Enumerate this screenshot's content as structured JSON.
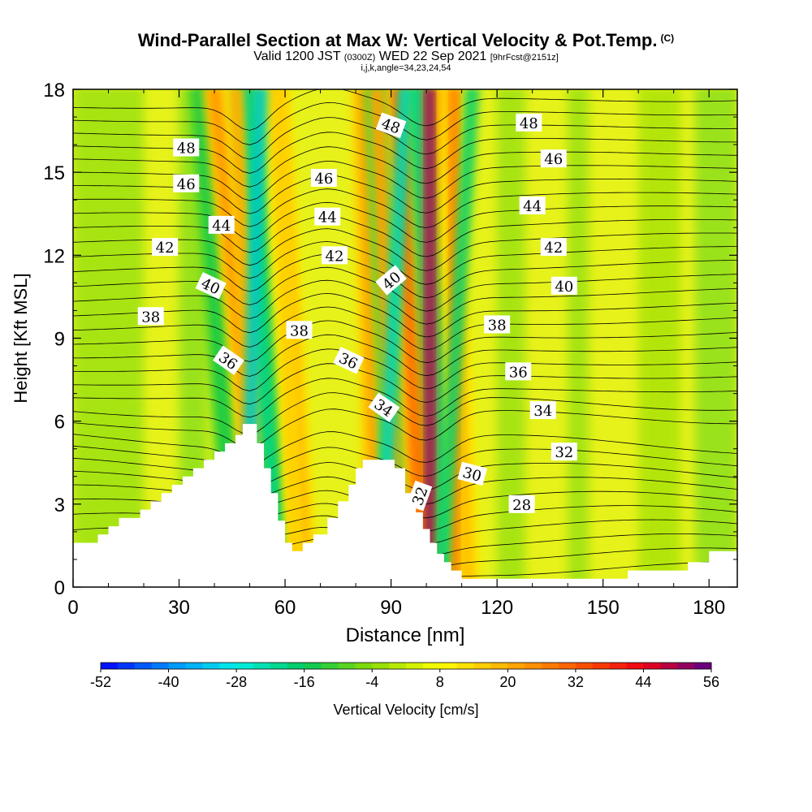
{
  "header": {
    "title": "Wind-Parallel Section at Max W: Vertical Velocity & Pot.Temp.",
    "copyright": "(C)",
    "valid_prefix": "Valid 1200 JST",
    "valid_z": "(0300Z)",
    "valid_date": "WED 22 Sep 2021",
    "fcst": "[9hrFcst@2151z]",
    "indices": "i,j,k,angle=34,23,24,54"
  },
  "chart_data": {
    "type": "heatmap",
    "xlabel": "Distance [nm]",
    "ylabel": "Height [Kft MSL]",
    "xlim": [
      0,
      188
    ],
    "ylim": [
      0,
      18
    ],
    "xticks": [
      0,
      30,
      60,
      90,
      120,
      150,
      180
    ],
    "yticks": [
      0,
      3,
      6,
      9,
      12,
      15,
      18
    ],
    "colorbar": {
      "label": "Vertical Velocity [cm/s]",
      "ticks": [
        -52,
        -40,
        -28,
        -16,
        -4,
        8,
        20,
        32,
        44,
        56
      ],
      "range": [
        -52,
        56
      ]
    },
    "terrain": [
      [
        0,
        1.6
      ],
      [
        7,
        1.6
      ],
      [
        7,
        1.9
      ],
      [
        10,
        1.9
      ],
      [
        10,
        2.2
      ],
      [
        13,
        2.2
      ],
      [
        13,
        2.5
      ],
      [
        19,
        2.5
      ],
      [
        19,
        2.8
      ],
      [
        22,
        2.8
      ],
      [
        22,
        3.1
      ],
      [
        25,
        3.1
      ],
      [
        25,
        3.4
      ],
      [
        28,
        3.4
      ],
      [
        28,
        3.7
      ],
      [
        31,
        3.7
      ],
      [
        31,
        4.0
      ],
      [
        34,
        4.0
      ],
      [
        34,
        4.3
      ],
      [
        37,
        4.3
      ],
      [
        37,
        4.6
      ],
      [
        40,
        4.6
      ],
      [
        40,
        4.9
      ],
      [
        43,
        4.9
      ],
      [
        43,
        5.2
      ],
      [
        46,
        5.2
      ],
      [
        46,
        5.5
      ],
      [
        48,
        5.5
      ],
      [
        48,
        5.9
      ],
      [
        52,
        5.9
      ],
      [
        52,
        5.2
      ],
      [
        54,
        5.2
      ],
      [
        54,
        4.3
      ],
      [
        56,
        4.3
      ],
      [
        56,
        3.4
      ],
      [
        58,
        3.4
      ],
      [
        58,
        2.4
      ],
      [
        60,
        2.4
      ],
      [
        60,
        1.6
      ],
      [
        62,
        1.6
      ],
      [
        62,
        1.3
      ],
      [
        65,
        1.3
      ],
      [
        65,
        1.6
      ],
      [
        68,
        1.6
      ],
      [
        68,
        1.9
      ],
      [
        72,
        1.9
      ],
      [
        72,
        2.5
      ],
      [
        75,
        2.5
      ],
      [
        75,
        3.1
      ],
      [
        78,
        3.1
      ],
      [
        78,
        3.7
      ],
      [
        80,
        3.7
      ],
      [
        80,
        4.3
      ],
      [
        82,
        4.3
      ],
      [
        82,
        4.6
      ],
      [
        91,
        4.6
      ],
      [
        91,
        4.3
      ],
      [
        94,
        4.3
      ],
      [
        94,
        3.4
      ],
      [
        97,
        3.4
      ],
      [
        97,
        2.7
      ],
      [
        99,
        2.7
      ],
      [
        99,
        2.1
      ],
      [
        101,
        2.1
      ],
      [
        101,
        1.6
      ],
      [
        103,
        1.6
      ],
      [
        103,
        1.2
      ],
      [
        105,
        1.2
      ],
      [
        105,
        0.9
      ],
      [
        107,
        0.9
      ],
      [
        107,
        0.6
      ],
      [
        110,
        0.6
      ],
      [
        110,
        0.3
      ],
      [
        157,
        0.3
      ],
      [
        157,
        0.6
      ],
      [
        174,
        0.6
      ],
      [
        174,
        0.9
      ],
      [
        180,
        0.9
      ],
      [
        180,
        1.3
      ],
      [
        188,
        1.3
      ],
      [
        188,
        0
      ],
      [
        0,
        0
      ]
    ],
    "updrafts": [
      {
        "x_base": 52,
        "x_top": 46,
        "w": 24
      },
      {
        "x_base": 63,
        "x_top": 58,
        "w": 18
      },
      {
        "x_base": 92,
        "x_top": 86,
        "w": 26
      },
      {
        "x_base": 101,
        "x_top": 101,
        "w": 56
      },
      {
        "x_base": 108,
        "x_top": 108,
        "w": 30
      }
    ],
    "downdrafts": [
      {
        "x_base": 49,
        "x_top": 53,
        "w": -34
      },
      {
        "x_base": 87,
        "x_top": 94,
        "w": -30
      },
      {
        "x_base": 104,
        "x_top": 113,
        "w": -20
      }
    ],
    "contour_labels": [
      {
        "text": "48",
        "x": 32,
        "y": 15.9,
        "angle": 0
      },
      {
        "text": "46",
        "x": 32,
        "y": 14.6,
        "angle": 0
      },
      {
        "text": "44",
        "x": 42,
        "y": 13.1,
        "angle": 0
      },
      {
        "text": "42",
        "x": 26,
        "y": 12.3,
        "angle": 0
      },
      {
        "text": "40",
        "x": 39,
        "y": 10.9,
        "angle": 25
      },
      {
        "text": "38",
        "x": 22,
        "y": 9.8,
        "angle": 0
      },
      {
        "text": "36",
        "x": 44,
        "y": 8.2,
        "angle": 35
      },
      {
        "text": "46",
        "x": 71,
        "y": 14.8,
        "angle": 0
      },
      {
        "text": "44",
        "x": 72,
        "y": 13.4,
        "angle": 0
      },
      {
        "text": "42",
        "x": 74,
        "y": 12.0,
        "angle": 0
      },
      {
        "text": "38",
        "x": 64,
        "y": 9.3,
        "angle": 0
      },
      {
        "text": "36",
        "x": 78,
        "y": 8.2,
        "angle": 25
      },
      {
        "text": "48",
        "x": 90,
        "y": 16.7,
        "angle": 20
      },
      {
        "text": "40",
        "x": 90,
        "y": 11.1,
        "angle": -40
      },
      {
        "text": "34",
        "x": 88,
        "y": 6.5,
        "angle": 35
      },
      {
        "text": "32",
        "x": 98,
        "y": 3.3,
        "angle": -70
      },
      {
        "text": "48",
        "x": 129,
        "y": 16.8,
        "angle": 0
      },
      {
        "text": "46",
        "x": 136,
        "y": 15.5,
        "angle": 0
      },
      {
        "text": "44",
        "x": 130,
        "y": 13.8,
        "angle": 0
      },
      {
        "text": "42",
        "x": 136,
        "y": 12.3,
        "angle": 0
      },
      {
        "text": "40",
        "x": 139,
        "y": 10.9,
        "angle": 0
      },
      {
        "text": "38",
        "x": 120,
        "y": 9.5,
        "angle": 0
      },
      {
        "text": "36",
        "x": 126,
        "y": 7.8,
        "angle": 0
      },
      {
        "text": "34",
        "x": 133,
        "y": 6.4,
        "angle": 0
      },
      {
        "text": "32",
        "x": 139,
        "y": 4.9,
        "angle": 0
      },
      {
        "text": "30",
        "x": 113,
        "y": 4.1,
        "angle": 15
      },
      {
        "text": "28",
        "x": 127,
        "y": 3.0,
        "angle": 0
      }
    ]
  }
}
